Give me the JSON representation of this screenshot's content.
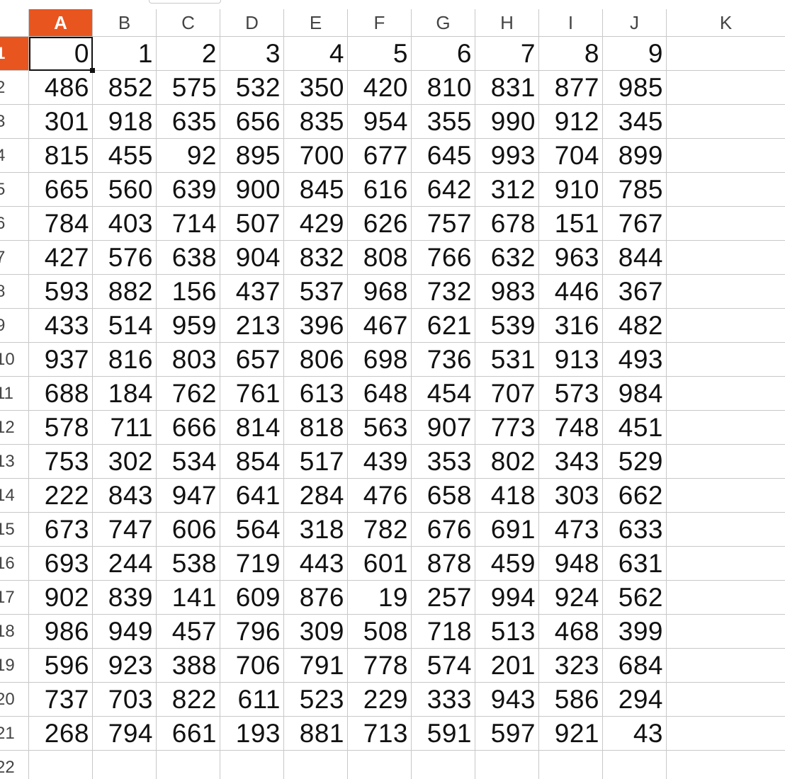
{
  "columns": [
    "A",
    "B",
    "C",
    "D",
    "E",
    "F",
    "G",
    "H",
    "I",
    "J",
    "K"
  ],
  "active_column": "A",
  "active_row": 1,
  "row_labels": [
    "1",
    "2",
    "3",
    "4",
    "5",
    "6",
    "7",
    "8",
    "9",
    "10",
    "11",
    "12",
    "13",
    "14",
    "15",
    "16",
    "17",
    "18",
    "19",
    "20",
    "21",
    "22"
  ],
  "selected_cell": "A1",
  "rows": [
    [
      "0",
      "1",
      "2",
      "3",
      "4",
      "5",
      "6",
      "7",
      "8",
      "9"
    ],
    [
      "486",
      "852",
      "575",
      "532",
      "350",
      "420",
      "810",
      "831",
      "877",
      "985"
    ],
    [
      "301",
      "918",
      "635",
      "656",
      "835",
      "954",
      "355",
      "990",
      "912",
      "345"
    ],
    [
      "815",
      "455",
      "92",
      "895",
      "700",
      "677",
      "645",
      "993",
      "704",
      "899"
    ],
    [
      "665",
      "560",
      "639",
      "900",
      "845",
      "616",
      "642",
      "312",
      "910",
      "785"
    ],
    [
      "784",
      "403",
      "714",
      "507",
      "429",
      "626",
      "757",
      "678",
      "151",
      "767"
    ],
    [
      "427",
      "576",
      "638",
      "904",
      "832",
      "808",
      "766",
      "632",
      "963",
      "844"
    ],
    [
      "593",
      "882",
      "156",
      "437",
      "537",
      "968",
      "732",
      "983",
      "446",
      "367"
    ],
    [
      "433",
      "514",
      "959",
      "213",
      "396",
      "467",
      "621",
      "539",
      "316",
      "482"
    ],
    [
      "937",
      "816",
      "803",
      "657",
      "806",
      "698",
      "736",
      "531",
      "913",
      "493"
    ],
    [
      "688",
      "184",
      "762",
      "761",
      "613",
      "648",
      "454",
      "707",
      "573",
      "984"
    ],
    [
      "578",
      "711",
      "666",
      "814",
      "818",
      "563",
      "907",
      "773",
      "748",
      "451"
    ],
    [
      "753",
      "302",
      "534",
      "854",
      "517",
      "439",
      "353",
      "802",
      "343",
      "529"
    ],
    [
      "222",
      "843",
      "947",
      "641",
      "284",
      "476",
      "658",
      "418",
      "303",
      "662"
    ],
    [
      "673",
      "747",
      "606",
      "564",
      "318",
      "782",
      "676",
      "691",
      "473",
      "633"
    ],
    [
      "693",
      "244",
      "538",
      "719",
      "443",
      "601",
      "878",
      "459",
      "948",
      "631"
    ],
    [
      "902",
      "839",
      "141",
      "609",
      "876",
      "19",
      "257",
      "994",
      "924",
      "562"
    ],
    [
      "986",
      "949",
      "457",
      "796",
      "309",
      "508",
      "718",
      "513",
      "468",
      "399"
    ],
    [
      "596",
      "923",
      "388",
      "706",
      "791",
      "778",
      "574",
      "201",
      "323",
      "684"
    ],
    [
      "737",
      "703",
      "822",
      "611",
      "523",
      "229",
      "333",
      "943",
      "586",
      "294"
    ],
    [
      "268",
      "794",
      "661",
      "193",
      "881",
      "713",
      "591",
      "597",
      "921",
      "43"
    ],
    [
      "",
      "",
      "",
      "",
      "",
      "",
      "",
      "",
      "",
      ""
    ]
  ],
  "colors": {
    "header_active": "#e9551e",
    "grid_line": "#c8c8c8",
    "text": "#111111"
  }
}
